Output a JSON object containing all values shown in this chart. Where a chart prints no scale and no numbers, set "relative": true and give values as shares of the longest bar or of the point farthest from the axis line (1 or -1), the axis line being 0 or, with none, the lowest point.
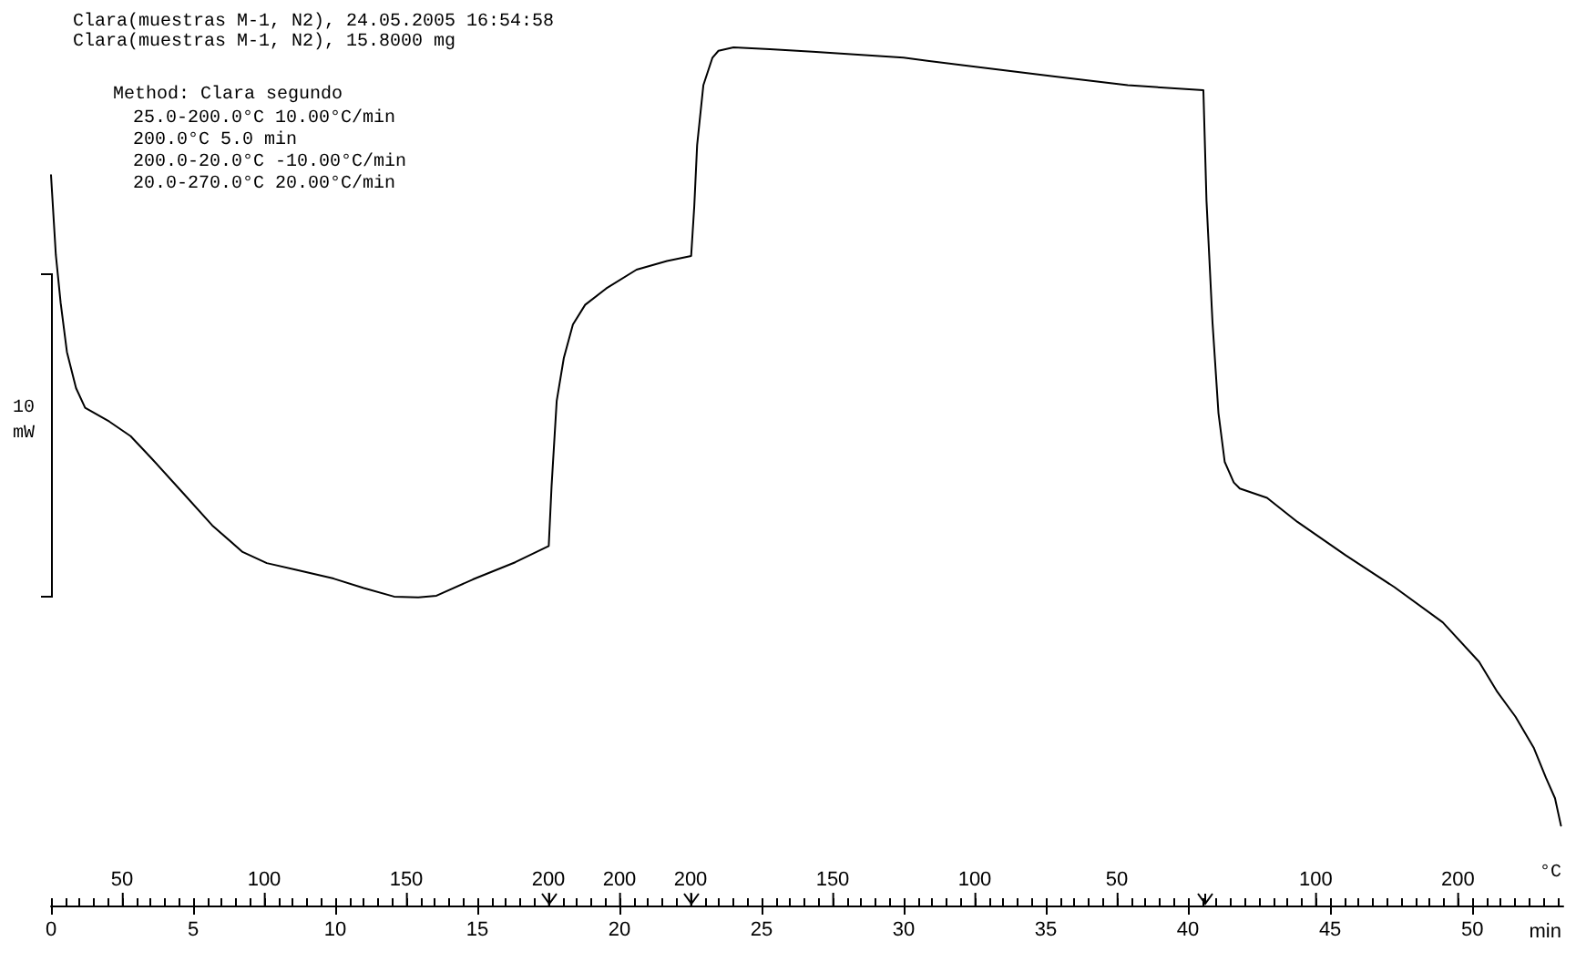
{
  "chart_data": {
    "type": "line",
    "relative": true,
    "xlabel": "min",
    "annotations": [
      "Clara(muestras M-1, N2), 24.05.2005 16:54:58",
      "Clara(muestras M-1, N2), 15.8000 mg",
      "Method: Clara segundo",
      "25.0-200.0°C 10.00°C/min",
      "200.0°C 5.0 min",
      "200.0-20.0°C -10.00°C/min",
      "20.0-270.0°C 20.00°C/min",
      "10\nmW",
      "°C",
      "50",
      "100",
      "150",
      "200",
      "200",
      "200",
      "150",
      "100",
      "50",
      "100",
      "200"
    ],
    "xlim": [
      0,
      53.2
    ],
    "xticks": [
      0,
      {
        "value": 0.5,
        "label": null
      },
      {
        "value": 1,
        "label": null
      },
      {
        "value": 1.5,
        "label": null
      },
      {
        "value": 2,
        "label": null
      },
      {
        "value": 2.5,
        "label": null
      },
      {
        "value": 3,
        "label": null
      },
      {
        "value": 3.5,
        "label": null
      },
      {
        "value": 4,
        "label": null
      },
      {
        "value": 4.5,
        "label": null
      },
      5,
      {
        "value": 5.5,
        "label": null
      },
      {
        "value": 6,
        "label": null
      },
      {
        "value": 6.5,
        "label": null
      },
      {
        "value": 7,
        "label": null
      },
      {
        "value": 7.5,
        "label": null
      },
      {
        "value": 8,
        "label": null
      },
      {
        "value": 8.5,
        "label": null
      },
      {
        "value": 9,
        "label": null
      },
      {
        "value": 9.5,
        "label": null
      },
      10,
      {
        "value": 10.5,
        "label": null
      },
      {
        "value": 11,
        "label": null
      },
      {
        "value": 11.5,
        "label": null
      },
      {
        "value": 12,
        "label": null
      },
      {
        "value": 12.5,
        "label": null
      },
      {
        "value": 13,
        "label": null
      },
      {
        "value": 13.5,
        "label": null
      },
      {
        "value": 14,
        "label": null
      },
      {
        "value": 14.5,
        "label": null
      },
      15,
      {
        "value": 15.5,
        "label": null
      },
      {
        "value": 16,
        "label": null
      },
      {
        "value": 16.5,
        "label": null
      },
      {
        "value": 17,
        "label": null
      },
      {
        "value": 17.5,
        "label": null
      },
      {
        "value": 18,
        "label": null
      },
      {
        "value": 18.5,
        "label": null
      },
      {
        "value": 19,
        "label": null
      },
      {
        "value": 19.5,
        "label": null
      },
      20,
      {
        "value": 20.5,
        "label": null
      },
      {
        "value": 21,
        "label": null
      },
      {
        "value": 21.5,
        "label": null
      },
      {
        "value": 22,
        "label": null
      },
      {
        "value": 22.5,
        "label": null
      },
      {
        "value": 23,
        "label": null
      },
      {
        "value": 23.5,
        "label": null
      },
      {
        "value": 24,
        "label": null
      },
      {
        "value": 24.5,
        "label": null
      },
      25,
      {
        "value": 25.5,
        "label": null
      },
      {
        "value": 26,
        "label": null
      },
      {
        "value": 26.5,
        "label": null
      },
      {
        "value": 27,
        "label": null
      },
      {
        "value": 27.5,
        "label": null
      },
      {
        "value": 28,
        "label": null
      },
      {
        "value": 28.5,
        "label": null
      },
      {
        "value": 29,
        "label": null
      },
      {
        "value": 29.5,
        "label": null
      },
      30,
      {
        "value": 30.5,
        "label": null
      },
      {
        "value": 31,
        "label": null
      },
      {
        "value": 31.5,
        "label": null
      },
      {
        "value": 32,
        "label": null
      },
      {
        "value": 32.5,
        "label": null
      },
      {
        "value": 33,
        "label": null
      },
      {
        "value": 33.5,
        "label": null
      },
      {
        "value": 34,
        "label": null
      },
      {
        "value": 34.5,
        "label": null
      },
      35,
      {
        "value": 35.5,
        "label": null
      },
      {
        "value": 36,
        "label": null
      },
      {
        "value": 36.5,
        "label": null
      },
      {
        "value": 37,
        "label": null
      },
      {
        "value": 37.5,
        "label": null
      },
      {
        "value": 38,
        "label": null
      },
      {
        "value": 38.5,
        "label": null
      },
      {
        "value": 39,
        "label": null
      },
      {
        "value": 39.5,
        "label": null
      },
      40,
      {
        "value": 40.5,
        "label": null
      },
      {
        "value": 41,
        "label": null
      },
      {
        "value": 41.5,
        "label": null
      },
      {
        "value": 42,
        "label": null
      },
      {
        "value": 42.5,
        "label": null
      },
      {
        "value": 43,
        "label": null
      },
      {
        "value": 43.5,
        "label": null
      },
      {
        "value": 44,
        "label": null
      },
      {
        "value": 44.5,
        "label": null
      },
      45,
      {
        "value": 45.5,
        "label": null
      },
      {
        "value": 46,
        "label": null
      },
      {
        "value": 46.5,
        "label": null
      },
      {
        "value": 47,
        "label": null
      },
      {
        "value": 47.5,
        "label": null
      },
      {
        "value": 48,
        "label": null
      },
      {
        "value": 48.5,
        "label": null
      },
      {
        "value": 49,
        "label": null
      },
      {
        "value": 49.5,
        "label": null
      },
      50,
      {
        "value": 50.5,
        "label": null
      },
      {
        "value": 51,
        "label": null
      },
      {
        "value": 51.5,
        "label": null
      },
      {
        "value": 52,
        "label": null
      },
      {
        "value": 52.5,
        "label": null
      },
      {
        "value": 53,
        "label": null
      }
    ],
    "color": "#000000",
    "x": [
      0,
      0.17,
      0.34,
      0.56,
      0.88,
      1.2,
      2.05,
      2.8,
      3.54,
      4.61,
      5.67,
      6.74,
      7.59,
      8.66,
      9.94,
      11,
      12.07,
      12.92,
      13.56,
      14.84,
      16.33,
      17.51,
      17.61,
      17.79,
      18.04,
      18.36,
      18.79,
      19.53,
      20.6,
      21.67,
      22.52,
      22.63,
      22.73,
      22.95,
      23.27,
      23.48,
      24.01,
      25.29,
      26.79,
      29.99,
      32.12,
      35.32,
      37.88,
      40.54,
      40.65,
      40.86,
      41.07,
      41.29,
      41.61,
      41.82,
      42.78,
      43.85,
      45.55,
      47.26,
      48.96,
      50.24,
      50.88,
      51.52,
      52.16,
      52.59,
      52.91,
      53.12
    ],
    "values": [
      0.851,
      0.758,
      0.702,
      0.645,
      0.603,
      0.58,
      0.564,
      0.547,
      0.521,
      0.482,
      0.443,
      0.412,
      0.399,
      0.391,
      0.381,
      0.37,
      0.36,
      0.359,
      0.361,
      0.38,
      0.4,
      0.419,
      0.489,
      0.588,
      0.638,
      0.677,
      0.7,
      0.719,
      0.741,
      0.751,
      0.757,
      0.815,
      0.886,
      0.956,
      0.988,
      0.996,
      1,
      0.998,
      0.995,
      0.988,
      0.979,
      0.966,
      0.956,
      0.95,
      0.821,
      0.68,
      0.574,
      0.517,
      0.493,
      0.486,
      0.475,
      0.447,
      0.408,
      0.371,
      0.33,
      0.284,
      0.249,
      0.22,
      0.184,
      0.149,
      0.125,
      0.093
    ]
  }
}
